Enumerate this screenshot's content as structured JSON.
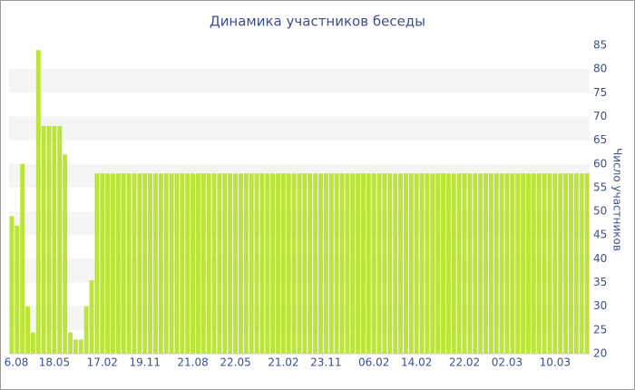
{
  "chart_data": {
    "type": "bar",
    "title": "Динамика участников беседы",
    "y_label": "Число участников",
    "color": "#bce43a",
    "grid": true,
    "categories": [
      "6.08",
      null,
      null,
      null,
      null,
      null,
      null,
      null,
      "18.05",
      null,
      null,
      null,
      null,
      null,
      null,
      null,
      null,
      "17.02",
      null,
      null,
      null,
      null,
      null,
      null,
      null,
      "19.11",
      null,
      null,
      null,
      null,
      null,
      null,
      null,
      null,
      "21.08",
      null,
      null,
      null,
      null,
      null,
      null,
      null,
      "22.05",
      null,
      null,
      null,
      null,
      null,
      null,
      null,
      null,
      "21.02",
      null,
      null,
      null,
      null,
      null,
      null,
      null,
      "23.11",
      null,
      null,
      null,
      null,
      null,
      null,
      null,
      null,
      "06.02",
      null,
      null,
      null,
      null,
      null,
      null,
      null,
      "14.02",
      null,
      null,
      null,
      null,
      null,
      null,
      null,
      null,
      "22.02",
      null,
      null,
      null,
      null,
      null,
      null,
      null,
      "02.03",
      null,
      null,
      null,
      null,
      null,
      null,
      null,
      null,
      "10.03",
      null,
      null,
      null,
      null,
      null,
      null
    ],
    "values": [
      49,
      47,
      60,
      30,
      24.5,
      84,
      68,
      68,
      68,
      68,
      62,
      24.5,
      23,
      23,
      30,
      35.5,
      58,
      58,
      58,
      58,
      58,
      58,
      58,
      58,
      58,
      58,
      58,
      58,
      58,
      58,
      58,
      58,
      58,
      58,
      58,
      58,
      58,
      58,
      58,
      58,
      58,
      58,
      58,
      58,
      58,
      58,
      58,
      58,
      58,
      58,
      58,
      58,
      58,
      58,
      58,
      58,
      58,
      58,
      58,
      58,
      58,
      58,
      58,
      58,
      58,
      58,
      58,
      58,
      58,
      58,
      58,
      58,
      58,
      58,
      58,
      58,
      58,
      58,
      58,
      58,
      58,
      58,
      58,
      58,
      58,
      58,
      58,
      58,
      58,
      58,
      58,
      58,
      58,
      58,
      58,
      58,
      58,
      58,
      58,
      58,
      58,
      58,
      58,
      58,
      58,
      58,
      58,
      58,
      58
    ],
    "ylim": [
      20,
      85
    ],
    "yticks": [
      20,
      25,
      30,
      35,
      40,
      45,
      50,
      55,
      60,
      65,
      70,
      75,
      80,
      85
    ]
  }
}
